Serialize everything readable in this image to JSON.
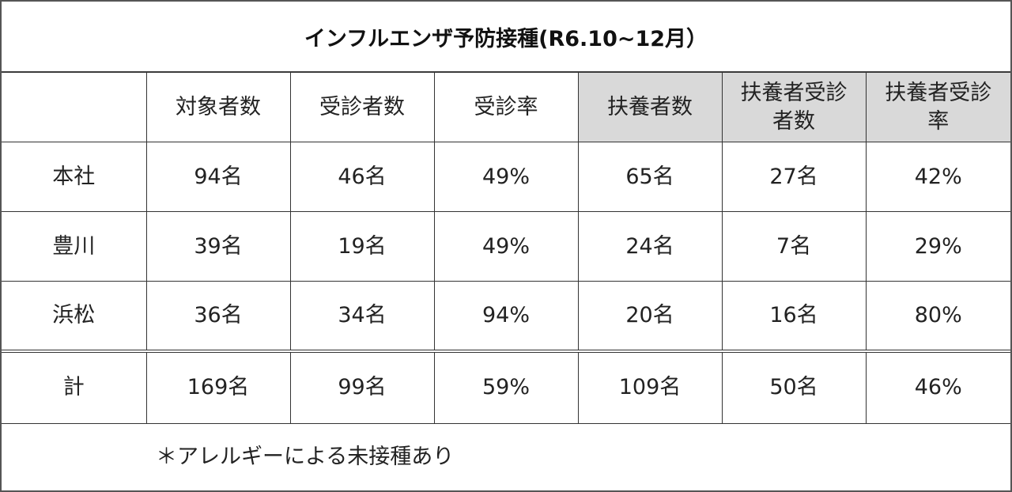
{
  "title": "インフルエンザ予防接種(R6.10~12月）",
  "headers": [
    "",
    "対象者数",
    "受診者数",
    "受診率",
    "扶養者数",
    "扶養者受診\n者数",
    "扶養者受診\n率"
  ],
  "rows": [
    {
      "label": "本社",
      "cells": [
        "94名",
        "46名",
        "49%",
        "65名",
        "27名",
        "42%"
      ]
    },
    {
      "label": "豊川",
      "cells": [
        "39名",
        "19名",
        "49%",
        "24名",
        "7名",
        "29%"
      ]
    },
    {
      "label": "浜松",
      "cells": [
        "36名",
        "34名",
        "94%",
        "20名",
        "16名",
        "80%"
      ]
    }
  ],
  "total": {
    "label": "計",
    "cells": [
      "169名",
      "99名",
      "59%",
      "109名",
      "50名",
      "46%"
    ]
  },
  "note": "＊アレルギーによる未接種あり",
  "colors": {
    "header_shade": "#d9d9d9",
    "border": "#333333"
  }
}
